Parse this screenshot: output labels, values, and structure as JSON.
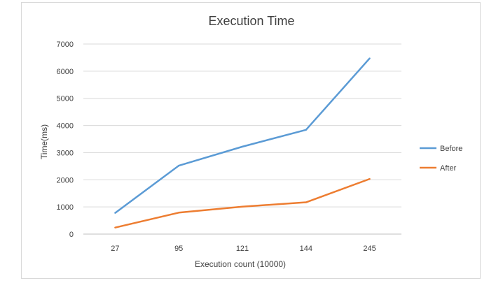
{
  "chart_data": {
    "type": "line",
    "title": "Execution Time",
    "xlabel": "Execution count (10000)",
    "ylabel": "Time(ms)",
    "categories": [
      "27",
      "95",
      "121",
      "144",
      "245"
    ],
    "ylim": [
      0,
      7000
    ],
    "yticks": [
      "0",
      "1000",
      "2000",
      "3000",
      "4000",
      "5000",
      "6000",
      "7000"
    ],
    "grid": true,
    "legend_position": "right",
    "series": [
      {
        "name": "Before",
        "color": "#5b9bd5",
        "values": [
          780,
          2520,
          3220,
          3840,
          6470
        ]
      },
      {
        "name": "After",
        "color": "#ed7d31",
        "values": [
          240,
          790,
          1010,
          1170,
          2030
        ]
      }
    ]
  }
}
